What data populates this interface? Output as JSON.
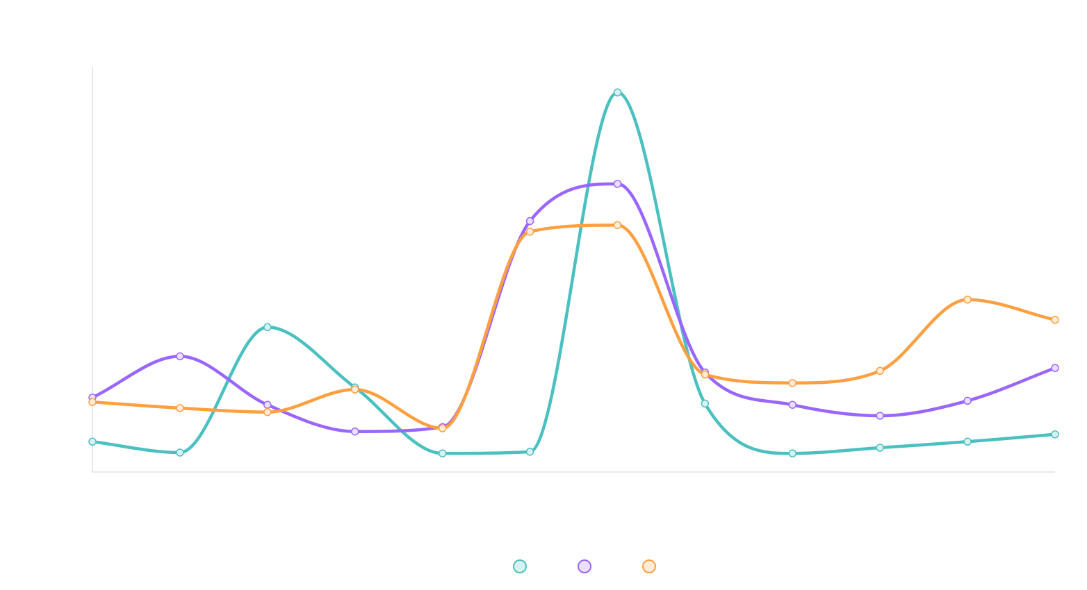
{
  "chart_data": {
    "type": "line",
    "smooth": true,
    "grid": false,
    "legend_position": "bottom",
    "ylim": [
      0,
      100
    ],
    "categories": [
      "",
      "",
      "",
      "",
      "",
      "",
      "",
      "",
      "",
      "",
      "",
      ""
    ],
    "series": [
      {
        "name": "",
        "color": "#4bc0c0",
        "fill": "#d8f2f2",
        "values": [
          7.5,
          4.8,
          35.8,
          20.9,
          4.6,
          5.0,
          93.8,
          16.9,
          4.6,
          6.0,
          7.5,
          9.3
        ]
      },
      {
        "name": "",
        "color": "#9966ff",
        "fill": "#ebe0ff",
        "values": [
          18.4,
          28.6,
          16.6,
          10.0,
          11.1,
          62.0,
          71.2,
          24.6,
          16.6,
          13.9,
          17.6,
          25.7
        ]
      },
      {
        "name": "",
        "color": "#ff9f40",
        "fill": "#ffecd9",
        "values": [
          17.3,
          15.8,
          14.8,
          20.4,
          10.8,
          59.4,
          61.0,
          24.1,
          22.0,
          25.0,
          42.6,
          37.6
        ]
      }
    ]
  }
}
